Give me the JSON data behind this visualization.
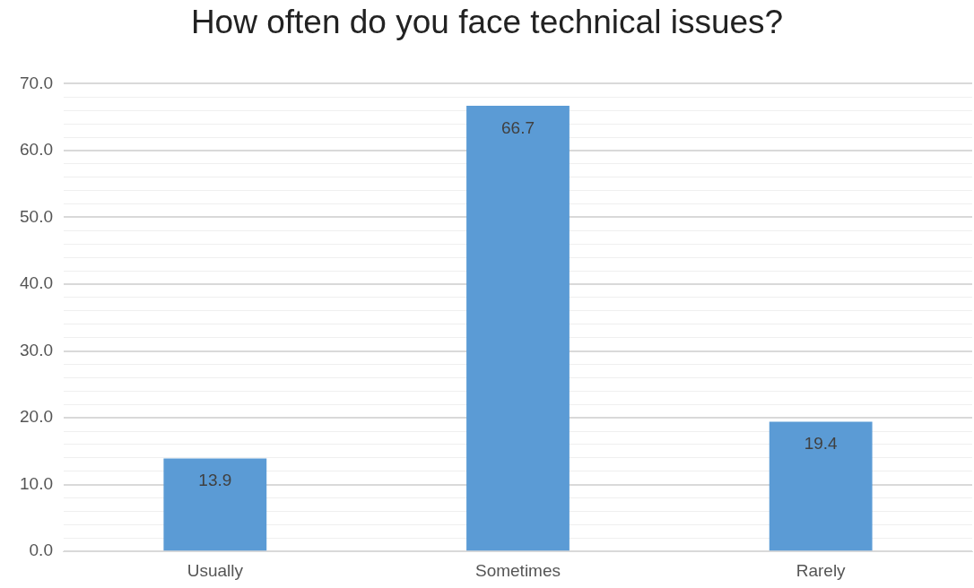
{
  "chart_data": {
    "type": "bar",
    "title": "How often do you face technical issues?",
    "categories": [
      "Usually",
      "Sometimes",
      "Rarely"
    ],
    "values": [
      13.9,
      66.7,
      19.4
    ],
    "color": "#5b9bd5",
    "ylim": [
      0,
      70
    ],
    "yticks": [
      {
        "value": 0,
        "label": "0.0"
      },
      {
        "value": 2,
        "label": null
      },
      {
        "value": 4,
        "label": null
      },
      {
        "value": 6,
        "label": null
      },
      {
        "value": 8,
        "label": null
      },
      {
        "value": 10,
        "label": "10.0"
      },
      {
        "value": 12,
        "label": null
      },
      {
        "value": 14,
        "label": null
      },
      {
        "value": 16,
        "label": null
      },
      {
        "value": 18,
        "label": null
      },
      {
        "value": 20,
        "label": "20.0"
      },
      {
        "value": 22,
        "label": null
      },
      {
        "value": 24,
        "label": null
      },
      {
        "value": 26,
        "label": null
      },
      {
        "value": 28,
        "label": null
      },
      {
        "value": 30,
        "label": "30.0"
      },
      {
        "value": 32,
        "label": null
      },
      {
        "value": 34,
        "label": null
      },
      {
        "value": 36,
        "label": null
      },
      {
        "value": 38,
        "label": null
      },
      {
        "value": 40,
        "label": "40.0"
      },
      {
        "value": 42,
        "label": null
      },
      {
        "value": 44,
        "label": null
      },
      {
        "value": 46,
        "label": null
      },
      {
        "value": 48,
        "label": null
      },
      {
        "value": 50,
        "label": "50.0"
      },
      {
        "value": 52,
        "label": null
      },
      {
        "value": 54,
        "label": null
      },
      {
        "value": 56,
        "label": null
      },
      {
        "value": 58,
        "label": null
      },
      {
        "value": 60,
        "label": "60.0"
      },
      {
        "value": 62,
        "label": null
      },
      {
        "value": 64,
        "label": null
      },
      {
        "value": 66,
        "label": null
      },
      {
        "value": 68,
        "label": null
      },
      {
        "value": 70,
        "label": "70.0"
      }
    ],
    "grid": true,
    "data_labels": true
  }
}
